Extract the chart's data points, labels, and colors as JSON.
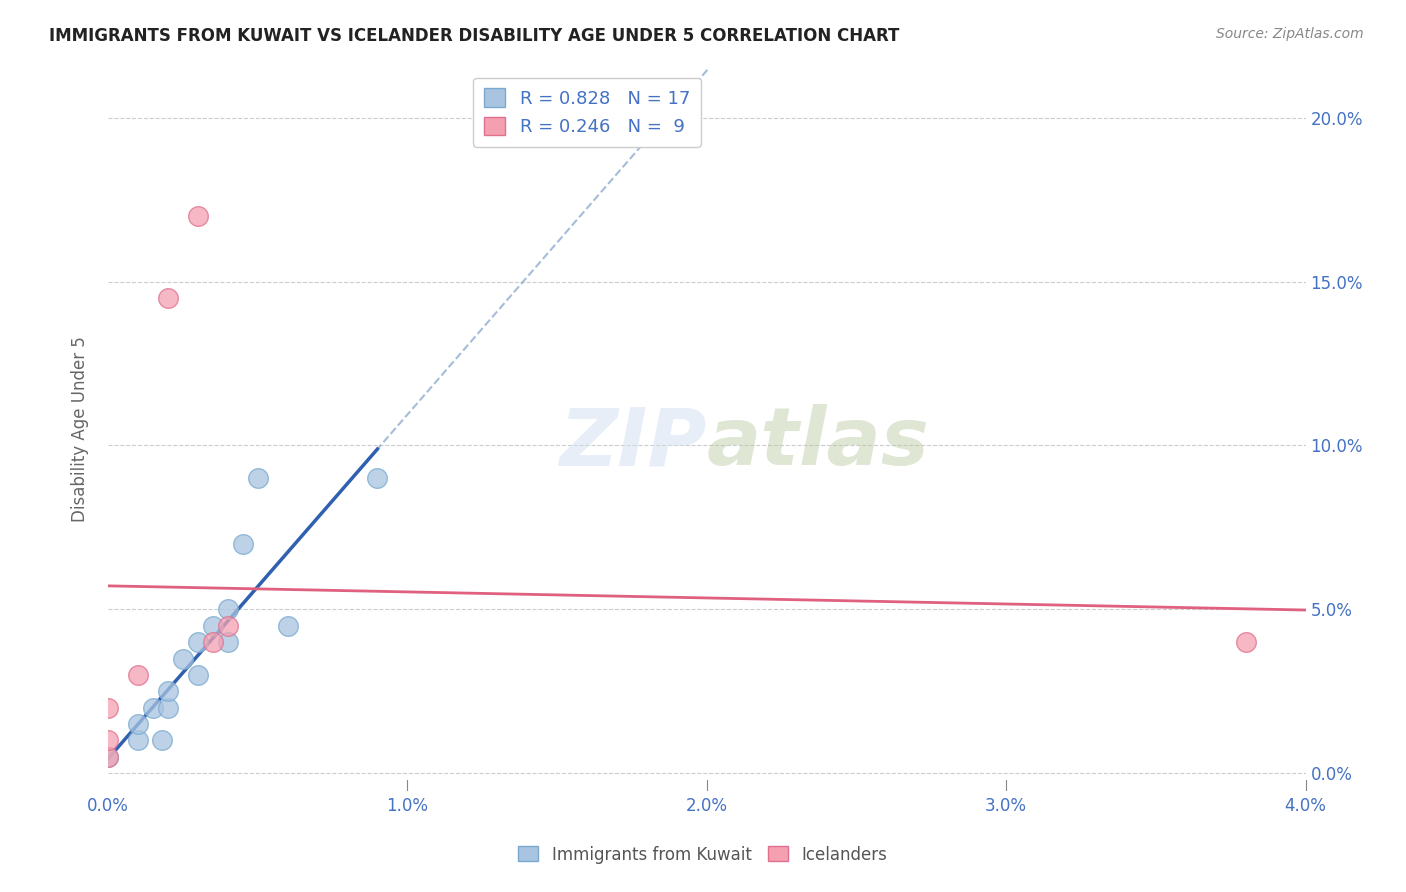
{
  "title": "IMMIGRANTS FROM KUWAIT VS ICELANDER DISABILITY AGE UNDER 5 CORRELATION CHART",
  "source": "Source: ZipAtlas.com",
  "ylabel": "Disability Age Under 5",
  "legend_label1": "Immigrants from Kuwait",
  "legend_label2": "Icelanders",
  "kuwait_x": [
    0.0,
    0.001,
    0.001,
    0.0015,
    0.002,
    0.002,
    0.0025,
    0.003,
    0.003,
    0.0035,
    0.004,
    0.004,
    0.0045,
    0.005,
    0.006,
    0.009,
    0.0018
  ],
  "kuwait_y": [
    0.005,
    0.01,
    0.015,
    0.02,
    0.02,
    0.025,
    0.035,
    0.03,
    0.04,
    0.045,
    0.04,
    0.05,
    0.07,
    0.09,
    0.045,
    0.09,
    0.01
  ],
  "iceland_x": [
    0.0,
    0.0,
    0.0,
    0.001,
    0.002,
    0.003,
    0.0035,
    0.004,
    0.038
  ],
  "iceland_y": [
    0.005,
    0.01,
    0.02,
    0.03,
    0.145,
    0.17,
    0.04,
    0.045,
    0.04
  ],
  "kuwait_color": "#a8c4e0",
  "kuwait_edge_color": "#7aaad0",
  "iceland_color": "#f4a0b0",
  "iceland_edge_color": "#e07090",
  "kuwait_line_color": "#3060b0",
  "iceland_line_color": "#e06080",
  "trendline_dashed_color": "#90acd0",
  "watermark_color": "#d0dff0",
  "background_color": "#ffffff",
  "grid_color": "#cccccc",
  "tick_color": "#4472c4",
  "ylabel_color": "#666666",
  "title_color": "#222222",
  "source_color": "#888888",
  "xlim": [
    0.0,
    0.04
  ],
  "ylim": [
    -0.005,
    0.215
  ],
  "xticks": [
    0.0,
    0.01,
    0.02,
    0.03,
    0.04
  ],
  "yticks": [
    0.0,
    0.05,
    0.1,
    0.15,
    0.2
  ],
  "xtick_labels": [
    "0.0%",
    "1.0%",
    "2.0%",
    "3.0%",
    "4.0%"
  ],
  "ytick_labels": [
    "0.0%",
    "5.0%",
    "10.0%",
    "15.0%",
    "20.0%"
  ],
  "kuwait_trendline_x": [
    0.0,
    0.04
  ],
  "iceland_trendline_x": [
    0.0,
    0.04
  ],
  "dashed_trendline_start": 0.0,
  "dashed_trendline_end": 0.04,
  "marker_size": 200,
  "kuwait_slope": 18.0,
  "kuwait_intercept": 0.0,
  "iceland_slope": 1.3,
  "iceland_intercept": 0.052,
  "dashed_slope": 3.75,
  "dashed_intercept": 0.0
}
